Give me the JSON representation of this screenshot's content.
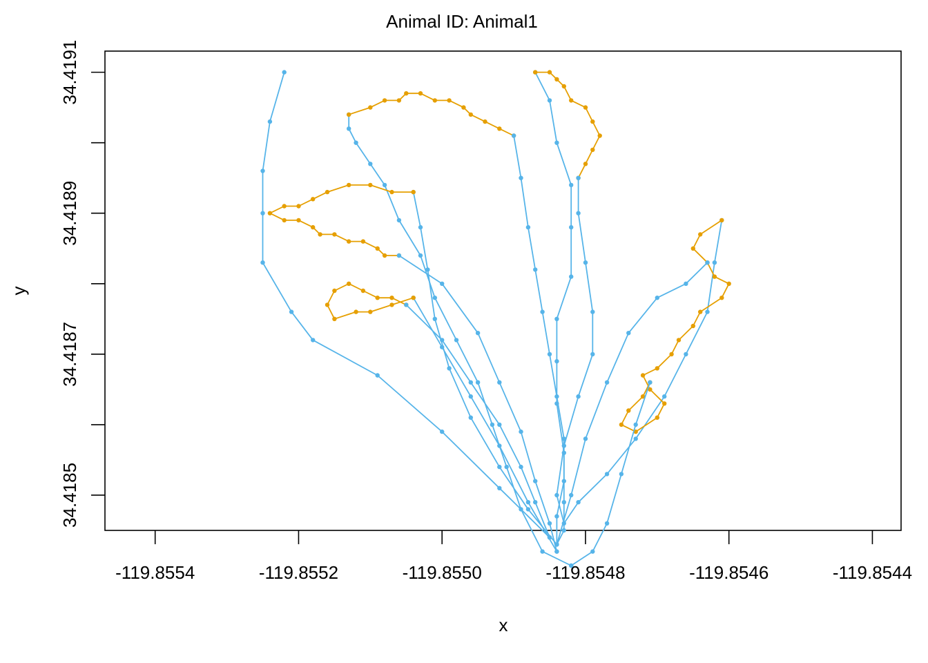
{
  "chart_data": {
    "type": "line",
    "title": "Animal ID: Animal1",
    "xlabel": "x",
    "ylabel": "y",
    "xlim": [
      -119.85547,
      -119.85436
    ],
    "ylim": [
      34.41845,
      34.41913
    ],
    "x_ticks": [
      -119.8554,
      -119.8552,
      -119.855,
      -119.8548,
      -119.8546,
      -119.8544
    ],
    "x_tick_labels": [
      "-119.8554",
      "-119.8552",
      "-119.8550",
      "-119.8548",
      "-119.8546",
      "-119.8544"
    ],
    "y_ticks": [
      34.4185,
      34.4187,
      34.4189,
      34.4191
    ],
    "y_tick_labels": [
      "34.4185",
      "34.4187",
      "34.4189",
      "34.4191"
    ],
    "grid": false,
    "legend": "none",
    "colors": {
      "commuting": "#56B4E9",
      "foraging": "#E69F00"
    },
    "segments": [
      {
        "state": "commuting",
        "points": [
          [
            -119.85484,
            34.41843
          ],
          [
            -119.85483,
            34.41845
          ],
          [
            -119.85483,
            34.41849
          ],
          [
            -119.85483,
            34.41856
          ],
          [
            -119.85484,
            34.41863
          ],
          [
            -119.85484,
            34.41869
          ],
          [
            -119.85484,
            34.41875
          ],
          [
            -119.85482,
            34.41881
          ],
          [
            -119.85482,
            34.41888
          ],
          [
            -119.85482,
            34.41894
          ],
          [
            -119.85484,
            34.419
          ],
          [
            -119.85485,
            34.41906
          ],
          [
            -119.85487,
            34.4191
          ]
        ]
      },
      {
        "state": "foraging",
        "points": [
          [
            -119.85487,
            34.4191
          ],
          [
            -119.85485,
            34.4191
          ],
          [
            -119.85484,
            34.41909
          ],
          [
            -119.85483,
            34.41908
          ],
          [
            -119.85482,
            34.41906
          ],
          [
            -119.8548,
            34.41905
          ],
          [
            -119.85479,
            34.41903
          ],
          [
            -119.85478,
            34.41901
          ],
          [
            -119.85479,
            34.41899
          ],
          [
            -119.8548,
            34.41897
          ],
          [
            -119.85481,
            34.41895
          ]
        ]
      },
      {
        "state": "commuting",
        "points": [
          [
            -119.85481,
            34.41895
          ],
          [
            -119.85481,
            34.4189
          ],
          [
            -119.8548,
            34.41883
          ],
          [
            -119.85479,
            34.41876
          ],
          [
            -119.85479,
            34.4187
          ],
          [
            -119.85481,
            34.41864
          ],
          [
            -119.85483,
            34.41857
          ],
          [
            -119.85484,
            34.4185
          ],
          [
            -119.85483,
            34.41846
          ],
          [
            -119.85481,
            34.41849
          ],
          [
            -119.85477,
            34.41853
          ],
          [
            -119.85473,
            34.41858
          ],
          [
            -119.85469,
            34.41864
          ],
          [
            -119.85466,
            34.4187
          ],
          [
            -119.85463,
            34.41876
          ],
          [
            -119.85462,
            34.41883
          ],
          [
            -119.85461,
            34.41889
          ]
        ]
      },
      {
        "state": "foraging",
        "points": [
          [
            -119.85461,
            34.41889
          ],
          [
            -119.85464,
            34.41887
          ],
          [
            -119.85465,
            34.41885
          ],
          [
            -119.85463,
            34.41883
          ],
          [
            -119.85462,
            34.41881
          ],
          [
            -119.8546,
            34.4188
          ],
          [
            -119.85461,
            34.41878
          ],
          [
            -119.85464,
            34.41876
          ],
          [
            -119.85465,
            34.41874
          ],
          [
            -119.85467,
            34.41872
          ],
          [
            -119.85468,
            34.4187
          ],
          [
            -119.8547,
            34.41868
          ],
          [
            -119.85472,
            34.41867
          ],
          [
            -119.85471,
            34.41865
          ],
          [
            -119.85469,
            34.41863
          ],
          [
            -119.8547,
            34.41861
          ],
          [
            -119.85473,
            34.41859
          ],
          [
            -119.85475,
            34.4186
          ],
          [
            -119.85474,
            34.41862
          ],
          [
            -119.85472,
            34.41864
          ],
          [
            -119.85471,
            34.41866
          ]
        ]
      },
      {
        "state": "commuting",
        "points": [
          [
            -119.85471,
            34.41866
          ],
          [
            -119.85473,
            34.4186
          ],
          [
            -119.85475,
            34.41853
          ],
          [
            -119.85477,
            34.41846
          ],
          [
            -119.85479,
            34.41842
          ],
          [
            -119.85482,
            34.4184
          ]
        ]
      },
      {
        "state": "commuting",
        "points": [
          [
            -119.85482,
            34.4184
          ],
          [
            -119.85486,
            34.41842
          ],
          [
            -119.85489,
            34.41848
          ],
          [
            -119.85491,
            34.41854
          ],
          [
            -119.85493,
            34.4186
          ],
          [
            -119.85495,
            34.41866
          ],
          [
            -119.85498,
            34.41872
          ],
          [
            -119.85501,
            34.41878
          ],
          [
            -119.85503,
            34.41884
          ],
          [
            -119.85506,
            34.41889
          ],
          [
            -119.85508,
            34.41894
          ],
          [
            -119.8551,
            34.41897
          ],
          [
            -119.85512,
            34.419
          ],
          [
            -119.85513,
            34.41902
          ],
          [
            -119.85513,
            34.41904
          ]
        ]
      },
      {
        "state": "foraging",
        "points": [
          [
            -119.85513,
            34.41904
          ],
          [
            -119.8551,
            34.41905
          ],
          [
            -119.85508,
            34.41906
          ],
          [
            -119.85506,
            34.41906
          ],
          [
            -119.85505,
            34.41907
          ],
          [
            -119.85503,
            34.41907
          ],
          [
            -119.85501,
            34.41906
          ],
          [
            -119.85499,
            34.41906
          ],
          [
            -119.85497,
            34.41905
          ],
          [
            -119.85496,
            34.41904
          ],
          [
            -119.85494,
            34.41903
          ],
          [
            -119.85492,
            34.41902
          ],
          [
            -119.8549,
            34.41901
          ]
        ]
      },
      {
        "state": "commuting",
        "points": [
          [
            -119.8549,
            34.41901
          ],
          [
            -119.85489,
            34.41895
          ],
          [
            -119.85488,
            34.41888
          ],
          [
            -119.85487,
            34.41882
          ],
          [
            -119.85486,
            34.41876
          ],
          [
            -119.85485,
            34.4187
          ],
          [
            -119.85484,
            34.41864
          ],
          [
            -119.85483,
            34.41858
          ],
          [
            -119.85483,
            34.41852
          ],
          [
            -119.85484,
            34.41847
          ],
          [
            -119.85484,
            34.41843
          ]
        ]
      },
      {
        "state": "commuting",
        "points": [
          [
            -119.85484,
            34.41843
          ],
          [
            -119.85488,
            34.41848
          ],
          [
            -119.85492,
            34.41854
          ],
          [
            -119.85496,
            34.41861
          ],
          [
            -119.85499,
            34.41868
          ],
          [
            -119.85501,
            34.41875
          ],
          [
            -119.85502,
            34.41882
          ],
          [
            -119.85503,
            34.41888
          ],
          [
            -119.85504,
            34.41893
          ]
        ]
      },
      {
        "state": "foraging",
        "points": [
          [
            -119.85504,
            34.41893
          ],
          [
            -119.85507,
            34.41893
          ],
          [
            -119.8551,
            34.41894
          ],
          [
            -119.85513,
            34.41894
          ],
          [
            -119.85516,
            34.41893
          ],
          [
            -119.85518,
            34.41892
          ],
          [
            -119.8552,
            34.41891
          ],
          [
            -119.85522,
            34.41891
          ],
          [
            -119.85524,
            34.4189
          ],
          [
            -119.85522,
            34.41889
          ],
          [
            -119.8552,
            34.41889
          ],
          [
            -119.85518,
            34.41888
          ],
          [
            -119.85517,
            34.41887
          ],
          [
            -119.85515,
            34.41887
          ],
          [
            -119.85513,
            34.41886
          ],
          [
            -119.85511,
            34.41886
          ],
          [
            -119.85509,
            34.41885
          ],
          [
            -119.85508,
            34.41884
          ],
          [
            -119.85506,
            34.41884
          ]
        ]
      },
      {
        "state": "commuting",
        "points": [
          [
            -119.85506,
            34.41884
          ],
          [
            -119.855,
            34.4188
          ],
          [
            -119.85495,
            34.41873
          ],
          [
            -119.85492,
            34.41866
          ],
          [
            -119.85489,
            34.41859
          ],
          [
            -119.85487,
            34.41852
          ],
          [
            -119.85485,
            34.41846
          ],
          [
            -119.85484,
            34.41842
          ]
        ]
      },
      {
        "state": "commuting",
        "points": [
          [
            -119.85484,
            34.41842
          ],
          [
            -119.85488,
            34.41849
          ],
          [
            -119.85492,
            34.41857
          ],
          [
            -119.85496,
            34.41864
          ],
          [
            -119.855,
            34.41871
          ],
          [
            -119.85504,
            34.41878
          ]
        ]
      },
      {
        "state": "foraging",
        "points": [
          [
            -119.85504,
            34.41878
          ],
          [
            -119.85507,
            34.41877
          ],
          [
            -119.8551,
            34.41876
          ],
          [
            -119.85512,
            34.41876
          ],
          [
            -119.85515,
            34.41875
          ],
          [
            -119.85516,
            34.41877
          ],
          [
            -119.85515,
            34.41879
          ],
          [
            -119.85513,
            34.4188
          ],
          [
            -119.85511,
            34.41879
          ],
          [
            -119.85509,
            34.41878
          ],
          [
            -119.85507,
            34.41878
          ],
          [
            -119.85505,
            34.41877
          ]
        ]
      },
      {
        "state": "commuting",
        "points": [
          [
            -119.85505,
            34.41877
          ],
          [
            -119.855,
            34.41872
          ],
          [
            -119.85496,
            34.41866
          ],
          [
            -119.85492,
            34.4186
          ],
          [
            -119.85489,
            34.41854
          ],
          [
            -119.85487,
            34.41849
          ],
          [
            -119.85485,
            34.41844
          ]
        ]
      },
      {
        "state": "commuting",
        "points": [
          [
            -119.85485,
            34.41844
          ],
          [
            -119.85492,
            34.41851
          ],
          [
            -119.855,
            34.41859
          ],
          [
            -119.85509,
            34.41867
          ],
          [
            -119.85518,
            34.41872
          ],
          [
            -119.85521,
            34.41876
          ],
          [
            -119.85525,
            34.41883
          ],
          [
            -119.85525,
            34.4189
          ],
          [
            -119.85525,
            34.41896
          ],
          [
            -119.85524,
            34.41903
          ],
          [
            -119.85522,
            34.4191
          ]
        ]
      },
      {
        "state": "commuting",
        "points": [
          [
            -119.85484,
            34.41843
          ],
          [
            -119.85482,
            34.4185
          ],
          [
            -119.8548,
            34.41858
          ],
          [
            -119.85477,
            34.41866
          ],
          [
            -119.85474,
            34.41873
          ],
          [
            -119.8547,
            34.41878
          ],
          [
            -119.85466,
            34.4188
          ],
          [
            -119.85463,
            34.41883
          ]
        ]
      }
    ]
  }
}
